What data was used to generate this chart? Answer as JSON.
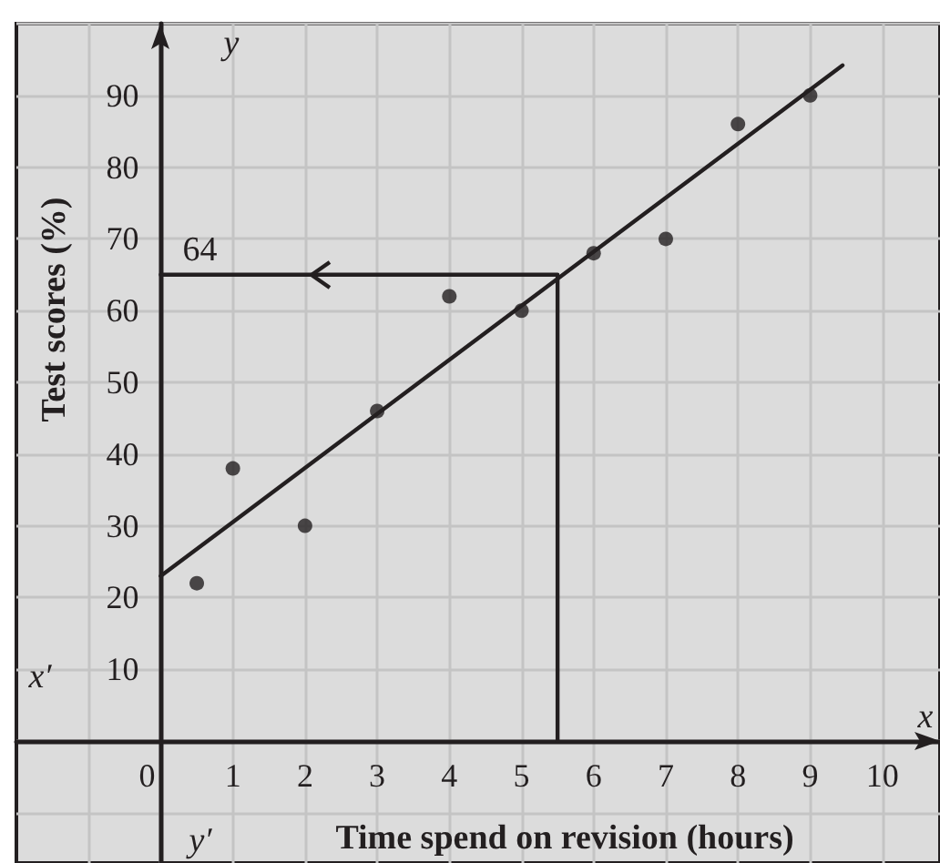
{
  "chart_data": {
    "type": "scatter",
    "xlabel": "Time spend on revision (hours)",
    "ylabel": "Test scores (%)",
    "xlim": [
      -2,
      10.8
    ],
    "ylim": [
      -17,
      100
    ],
    "xticks": [
      {
        "value": -1,
        "label": null
      },
      0,
      1,
      2,
      3,
      4,
      5,
      6,
      7,
      8,
      9,
      10
    ],
    "yticks": [
      {
        "value": -10,
        "label": null
      },
      {
        "value": 0,
        "label": null
      },
      10,
      20,
      30,
      40,
      50,
      60,
      70,
      80,
      90,
      {
        "value": 100,
        "label": null
      }
    ],
    "grid": true,
    "marker": "circle",
    "series": [
      {
        "color": "#231f20",
        "x": [
          0.5,
          1,
          2,
          3,
          4,
          5,
          6,
          7,
          8,
          9
        ],
        "values": [
          22,
          38,
          30,
          46,
          62,
          60,
          68,
          70,
          86,
          90
        ]
      },
      {
        "type": "line",
        "color": "#231f20",
        "marker": "none",
        "line_style": "solid",
        "x": [
          0,
          9.45
        ],
        "values": [
          23,
          94.2
        ]
      },
      {
        "type": "line",
        "color": "#231f20",
        "marker": "none",
        "line_style": "solid",
        "x": [
          5.5,
          5.5,
          0
        ],
        "values": [
          0,
          65,
          65
        ]
      }
    ],
    "annotations": [
      {
        "text": "64",
        "x": 0,
        "y": 65
      },
      "y",
      "x′",
      "x",
      "y′"
    ]
  }
}
